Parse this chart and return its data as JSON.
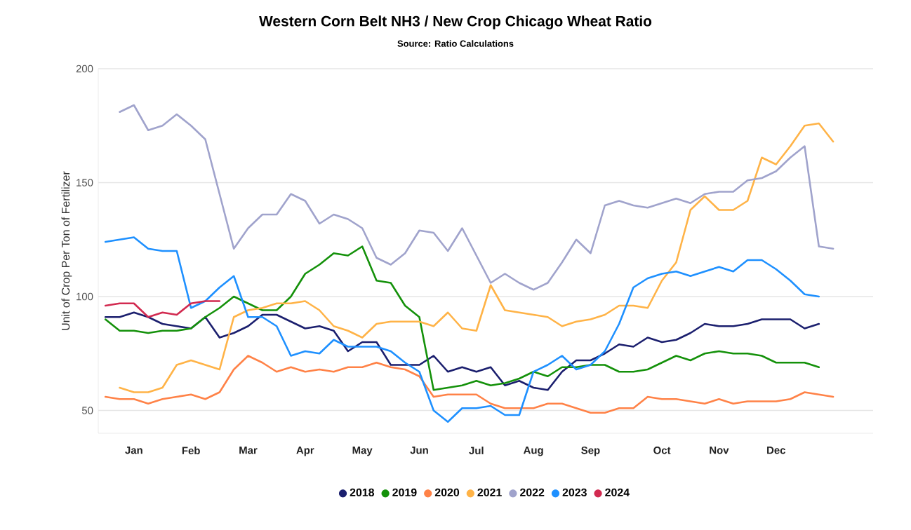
{
  "chart_data": {
    "type": "line",
    "title": "Western Corn Belt NH3 / New Crop Chicago Wheat Ratio",
    "subtitle": "Source: Ratio Calculations",
    "ylabel": "Unit of Crop Per Ton of Fertilizer",
    "categories": [
      null,
      null,
      "Jan",
      null,
      null,
      null,
      "Feb",
      null,
      null,
      null,
      "Mar",
      null,
      null,
      null,
      "Apr",
      null,
      null,
      null,
      "May",
      null,
      null,
      null,
      "Jun",
      null,
      null,
      null,
      "Jul",
      null,
      null,
      null,
      "Aug",
      null,
      null,
      null,
      "Sep",
      null,
      null,
      null,
      null,
      "Oct",
      null,
      null,
      null,
      "Nov",
      null,
      null,
      null,
      "Dec",
      null,
      null,
      null,
      null
    ],
    "ylim": [
      40,
      200
    ],
    "yticks": [
      50,
      100,
      150,
      200
    ],
    "grid": "y",
    "legend": "bottom",
    "marker": "none",
    "line_style": "solid",
    "series": [
      {
        "name": "2018",
        "color": "#1b1f6e",
        "values": [
          91,
          91,
          93,
          91,
          88,
          87,
          86,
          91,
          82,
          84,
          87,
          92,
          92,
          89,
          86,
          87,
          85,
          76,
          80,
          80,
          70,
          70,
          70,
          74,
          67,
          69,
          67,
          69,
          61,
          63,
          60,
          59,
          67,
          72,
          72,
          75,
          79,
          78,
          82,
          80,
          81,
          84,
          88,
          87,
          87,
          88,
          90,
          90,
          90,
          86,
          88,
          null
        ]
      },
      {
        "name": "2019",
        "color": "#14910a",
        "values": [
          90,
          85,
          85,
          84,
          85,
          85,
          86,
          91,
          95,
          100,
          97,
          94,
          94,
          100,
          110,
          114,
          119,
          118,
          122,
          107,
          106,
          96,
          91,
          59,
          60,
          61,
          63,
          61,
          62,
          64,
          67,
          65,
          69,
          69,
          70,
          70,
          67,
          67,
          68,
          71,
          74,
          72,
          75,
          76,
          75,
          75,
          74,
          71,
          71,
          71,
          69,
          null
        ]
      },
      {
        "name": "2020",
        "color": "#ff8247",
        "values": [
          56,
          55,
          55,
          53,
          55,
          56,
          57,
          55,
          58,
          68,
          74,
          71,
          67,
          69,
          67,
          68,
          67,
          69,
          69,
          71,
          69,
          68,
          65,
          56,
          57,
          57,
          57,
          53,
          51,
          51,
          51,
          53,
          53,
          51,
          49,
          49,
          51,
          51,
          56,
          55,
          55,
          54,
          53,
          55,
          53,
          54,
          54,
          54,
          55,
          58,
          57,
          56
        ]
      },
      {
        "name": "2021",
        "color": "#ffb347",
        "values": [
          null,
          60,
          58,
          58,
          60,
          70,
          72,
          70,
          68,
          91,
          94,
          95,
          97,
          97,
          98,
          94,
          87,
          85,
          82,
          88,
          89,
          89,
          89,
          87,
          93,
          86,
          85,
          105,
          94,
          93,
          92,
          91,
          87,
          89,
          90,
          92,
          96,
          96,
          95,
          107,
          115,
          138,
          144,
          138,
          138,
          142,
          161,
          158,
          166,
          175,
          176,
          168
        ]
      },
      {
        "name": "2022",
        "color": "#a0a3cc",
        "values": [
          null,
          181,
          184,
          173,
          175,
          180,
          175,
          169,
          145,
          121,
          130,
          136,
          136,
          145,
          142,
          132,
          136,
          134,
          130,
          117,
          114,
          119,
          129,
          128,
          120,
          130,
          118,
          106,
          110,
          106,
          103,
          106,
          115,
          125,
          119,
          140,
          142,
          140,
          139,
          141,
          143,
          141,
          145,
          146,
          146,
          151,
          152,
          155,
          161,
          166,
          122,
          121
        ]
      },
      {
        "name": "2023",
        "color": "#1e90ff",
        "values": [
          124,
          125,
          126,
          121,
          120,
          120,
          95,
          98,
          104,
          109,
          91,
          91,
          87,
          74,
          76,
          75,
          81,
          78,
          78,
          78,
          76,
          71,
          67,
          50,
          45,
          51,
          51,
          52,
          48,
          48,
          67,
          70,
          74,
          68,
          70,
          76,
          88,
          104,
          108,
          110,
          111,
          109,
          111,
          113,
          111,
          116,
          116,
          112,
          107,
          101,
          100,
          null
        ]
      },
      {
        "name": "2024",
        "color": "#d22a50",
        "values": [
          96,
          97,
          97,
          91,
          93,
          92,
          97,
          98,
          98,
          null,
          null,
          null,
          null,
          null,
          null,
          null,
          null,
          null,
          null,
          null,
          null,
          null,
          null,
          null,
          null,
          null,
          null,
          null,
          null,
          null,
          null,
          null,
          null,
          null,
          null,
          null,
          null,
          null,
          null,
          null,
          null,
          null,
          null,
          null,
          null,
          null,
          null,
          null,
          null,
          null,
          null,
          null
        ]
      }
    ]
  }
}
